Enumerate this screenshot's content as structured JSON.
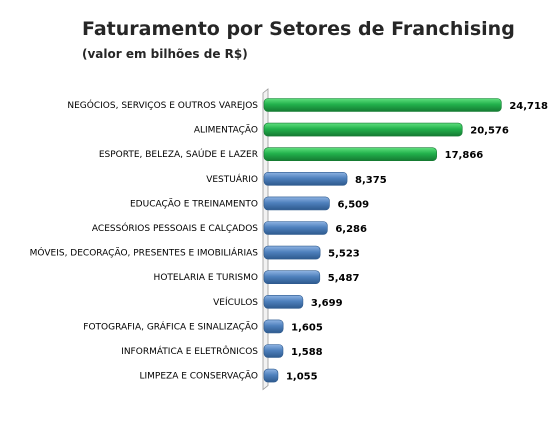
{
  "chart_data": {
    "type": "bar",
    "orientation": "horizontal",
    "title": "Faturamento por Setores de Franchising",
    "subtitle": "(valor em bilhões de R$)",
    "categories": [
      "NEGÓCIOS, SERVIÇOS E OUTROS VAREJOS",
      "ALIMENTAÇÃO",
      "ESPORTE, BELEZA, SAÚDE E LAZER",
      "VESTUÁRIO",
      "EDUCAÇÃO E TREINAMENTO",
      "ACESSÓRIOS PESSOAIS E CALÇADOS",
      "MÓVEIS, DECORAÇÃO, PRESENTES E IMOBILIÁRIAS",
      "HOTELARIA E TURISMO",
      "VEÍCULOS",
      "FOTOGRAFIA, GRÁFICA E SINALIZAÇÃO",
      "INFORMÁTICA E ELETRÔNICOS",
      "LIMPEZA E CONSERVAÇÃO"
    ],
    "values": [
      24.718,
      20.576,
      17.866,
      8.375,
      6.509,
      6.286,
      5.523,
      5.487,
      3.699,
      1.605,
      1.588,
      1.055
    ],
    "value_labels": [
      "24,718",
      "20,576",
      "17,866",
      "8,375",
      "6,509",
      "6,286",
      "5,523",
      "5,487",
      "3,699",
      "1,605",
      "1,588",
      "1,055"
    ],
    "bar_colors": [
      "#22b14c",
      "#22b14c",
      "#22b14c",
      "#4f81bd",
      "#4f81bd",
      "#4f81bd",
      "#4f81bd",
      "#4f81bd",
      "#4f81bd",
      "#4f81bd",
      "#4f81bd",
      "#4f81bd"
    ],
    "xlim": [
      0,
      25
    ],
    "grid": false,
    "legend": false
  }
}
